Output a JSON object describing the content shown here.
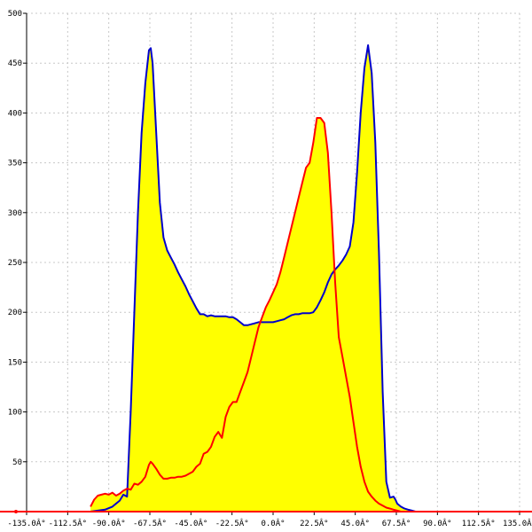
{
  "chart_data": {
    "type": "area",
    "title": "",
    "xlabel": "",
    "ylabel": "",
    "xlim": [
      -135,
      135
    ],
    "ylim": [
      0,
      500
    ],
    "grid": true,
    "x_ticks": [
      -135,
      -112.5,
      -90,
      -67.5,
      -45,
      -22.5,
      0,
      22.5,
      45,
      67.5,
      90,
      112.5,
      135
    ],
    "x_tick_labels": [
      "-135.0Â°",
      "-112.5Â°",
      "-90.0Â°",
      "-67.5Â°",
      "-45.0Â°",
      "-22.5Â°",
      "0.0Â°",
      "22.5Â°",
      "45.0Â°",
      "67.5Â°",
      "90.0Â°",
      "112.5Â°",
      "135.0Â°"
    ],
    "y_ticks": [
      50,
      100,
      150,
      200,
      250,
      300,
      350,
      400,
      450,
      500
    ],
    "y_tick_labels": [
      "50",
      "100",
      "150",
      "200",
      "250",
      "300",
      "350",
      "400",
      "450",
      "500"
    ],
    "fill_color": "#ffff00",
    "series": [
      {
        "color": "#0000cc",
        "x": [
          -100,
          -96,
          -92,
          -88,
          -84,
          -82,
          -80,
          -78,
          -76,
          -74,
          -72,
          -70,
          -68,
          -67,
          -66,
          -64,
          -62,
          -60,
          -58,
          -56,
          -54,
          -52,
          -50,
          -48,
          -46,
          -44,
          -42,
          -40,
          -38,
          -36,
          -34,
          -32,
          -30,
          -28,
          -26,
          -24,
          -22,
          -20,
          -18,
          -16,
          -14,
          -12,
          -10,
          -8,
          -6,
          -4,
          -2,
          0,
          2,
          4,
          6,
          8,
          10,
          12,
          14,
          16,
          18,
          20,
          22,
          24,
          26,
          28,
          30,
          32,
          34,
          36,
          38,
          40,
          42,
          44,
          46,
          48,
          50,
          52,
          54,
          56,
          58,
          60,
          62,
          64,
          66,
          67,
          68,
          70,
          72,
          74,
          76,
          78,
          80,
          82,
          84,
          86,
          88,
          90,
          92,
          94,
          96,
          98,
          100,
          102
        ],
        "y": [
          0,
          1,
          2,
          5,
          11,
          17,
          15,
          100,
          200,
          300,
          380,
          430,
          463,
          465,
          450,
          380,
          310,
          275,
          262,
          255,
          248,
          240,
          233,
          226,
          218,
          211,
          204,
          198,
          198,
          196,
          197,
          196,
          196,
          196,
          196,
          195,
          195,
          193,
          190,
          187,
          187,
          188,
          189,
          190,
          190,
          190,
          190,
          190,
          191,
          192,
          193,
          195,
          197,
          198,
          198,
          199,
          199,
          199,
          200,
          205,
          212,
          220,
          230,
          238,
          243,
          247,
          252,
          258,
          266,
          290,
          340,
          400,
          445,
          468,
          440,
          370,
          260,
          120,
          30,
          14,
          15,
          12,
          8,
          5,
          3,
          2,
          1,
          0,
          0,
          0,
          0,
          0,
          0,
          0,
          0,
          0,
          0,
          0,
          0,
          0
        ]
      },
      {
        "color": "#ff0000",
        "x": [
          -100,
          -98,
          -96,
          -94,
          -92,
          -90,
          -88,
          -86,
          -84,
          -82,
          -80,
          -78,
          -76,
          -74,
          -72,
          -70,
          -68,
          -67,
          -66,
          -64,
          -62,
          -60,
          -58,
          -56,
          -54,
          -52,
          -50,
          -48,
          -46,
          -44,
          -42,
          -40,
          -38,
          -36,
          -34,
          -32,
          -30,
          -28,
          -26,
          -24,
          -22,
          -20,
          -18,
          -16,
          -14,
          -12,
          -10,
          -8,
          -6,
          -4,
          -2,
          0,
          2,
          4,
          6,
          8,
          10,
          12,
          14,
          16,
          18,
          20,
          22,
          24,
          26,
          28,
          30,
          32,
          34,
          36,
          38,
          40,
          42,
          44,
          46,
          48,
          50,
          52,
          54,
          56,
          58,
          60,
          62,
          64,
          66,
          68,
          70,
          72,
          74,
          76,
          78,
          80,
          82,
          84,
          86,
          88,
          90,
          92,
          94,
          96,
          98,
          100,
          102
        ],
        "y": [
          5,
          12,
          16,
          17,
          18,
          17,
          19,
          16,
          18,
          21,
          23,
          22,
          28,
          27,
          30,
          35,
          47,
          50,
          48,
          43,
          37,
          33,
          33,
          34,
          34,
          35,
          35,
          36,
          38,
          40,
          45,
          48,
          58,
          60,
          65,
          75,
          80,
          74,
          95,
          105,
          110,
          110,
          120,
          130,
          140,
          155,
          170,
          185,
          195,
          205,
          212,
          220,
          228,
          240,
          255,
          270,
          285,
          300,
          315,
          330,
          345,
          350,
          370,
          395,
          395,
          390,
          360,
          300,
          230,
          175,
          155,
          135,
          115,
          90,
          65,
          45,
          30,
          20,
          15,
          11,
          8,
          6,
          4,
          3,
          2,
          1,
          0,
          0,
          0,
          0,
          0,
          0,
          0,
          0,
          0,
          0,
          0,
          0,
          0,
          0,
          0,
          0,
          0
        ]
      }
    ]
  }
}
